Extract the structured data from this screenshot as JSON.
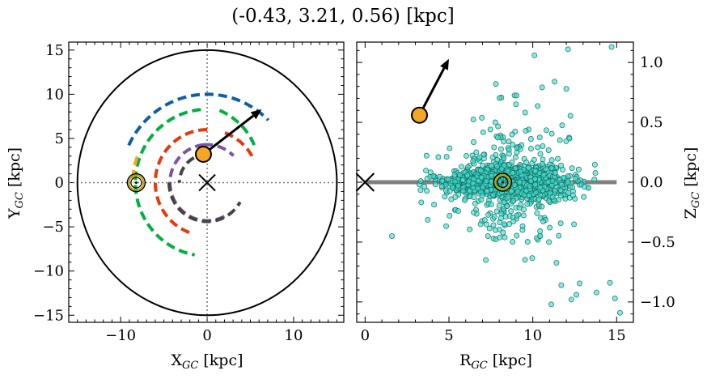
{
  "title": "(-0.43, 3.21, 0.56) [kpc]",
  "chart_data": [
    {
      "type": "line",
      "panel": "left",
      "xlabel": "X_GC [kpc]",
      "ylabel": "Y_GC [kpc]",
      "xlim": [
        -16,
        15.8
      ],
      "ylim": [
        -15.8,
        15.9
      ],
      "xticks": [
        -10,
        0,
        10
      ],
      "yticks": [
        -15,
        -10,
        -5,
        0,
        5,
        10,
        15
      ],
      "boundary_circle_radius_kpc": 15,
      "reference_lines": {
        "x": 0,
        "y": 0,
        "style": "dotted"
      },
      "galactic_center_marker": {
        "x": 0,
        "y": 0,
        "symbol": "x"
      },
      "sun_marker": {
        "x": -8.2,
        "y": 0,
        "symbol": "sun"
      },
      "target_point": {
        "x": -0.43,
        "y": 3.21,
        "color": "#f5a623"
      },
      "velocity_arrow": {
        "from": [
          -0.43,
          3.21
        ],
        "to": [
          6.3,
          8.3
        ]
      },
      "spiral_arms": [
        {
          "color": "#0f5fa6",
          "r_kpc": 10.0,
          "theta_deg": [
            155,
            45
          ]
        },
        {
          "color": "#00b140",
          "r_kpc": 8.3,
          "theta_deg": [
            80,
            35
          ],
          "r_end_kpc": 6.8,
          "theta_end_deg": 35
        },
        {
          "color": "#00b140",
          "r_kpc": 8.3,
          "theta_deg": [
            95,
            260
          ]
        },
        {
          "color": "#e8380d",
          "r_kpc": 6.0,
          "theta_deg": [
            70,
            25
          ]
        },
        {
          "color": "#e8380d",
          "r_kpc": 6.0,
          "theta_deg": [
            90,
            250
          ]
        },
        {
          "color": "#7b55a3",
          "r_kpc": 4.3,
          "theta_deg": [
            95,
            45
          ]
        },
        {
          "color": "#7b55a3",
          "r_kpc": 4.3,
          "theta_deg": [
            95,
            300
          ]
        },
        {
          "color": "#444444",
          "r_kpc": 3.2,
          "theta_deg": [
            90,
            180
          ]
        },
        {
          "color": "#444444",
          "r_kpc": 4.4,
          "theta_deg": [
            180,
            330
          ]
        },
        {
          "color": "#f5a623",
          "r_kpc": 8.6,
          "theta_deg": [
            160,
            180
          ]
        }
      ]
    },
    {
      "type": "scatter",
      "panel": "right",
      "xlabel": "R_GC [kpc]",
      "ylabel": "Z_GC [kpc]",
      "xlim": [
        -0.5,
        16
      ],
      "ylim": [
        -1.17,
        1.17
      ],
      "xticks": [
        0,
        5,
        10,
        15
      ],
      "yticks": [
        -1.0,
        -0.5,
        0.0,
        0.5,
        1.0
      ],
      "point_color": "#40e0d0",
      "disk_line": {
        "x": [
          0,
          15
        ],
        "y": 0,
        "color": "#808080"
      },
      "galactic_center_marker": {
        "x": 0,
        "y": 0,
        "symbol": "x"
      },
      "sun_marker": {
        "x": 8.2,
        "y": 0,
        "symbol": "sun"
      },
      "target_point": {
        "x": 3.24,
        "y": 0.56,
        "color": "#f5a623"
      },
      "velocity_arrow": {
        "from": [
          3.24,
          0.56
        ],
        "to": [
          5.0,
          1.03
        ]
      },
      "cloud": {
        "center_x": 8.5,
        "spread_x": 2.6,
        "core_spread_y": 0.06,
        "wide_spread_y": 0.28,
        "count": 1500
      },
      "outliers": [
        [
          10.1,
          1.06
        ],
        [
          12.1,
          1.11
        ],
        [
          14.7,
          1.13
        ],
        [
          7.8,
          0.82
        ],
        [
          11.3,
          0.84
        ],
        [
          12.0,
          0.78
        ],
        [
          1.6,
          -0.45
        ],
        [
          7.2,
          -0.65
        ],
        [
          11.7,
          -0.86
        ],
        [
          12.6,
          -0.94
        ],
        [
          13.8,
          -0.92
        ],
        [
          14.6,
          -0.84
        ],
        [
          14.9,
          -0.97
        ],
        [
          15.2,
          -1.09
        ],
        [
          11.1,
          -1.02
        ],
        [
          12.3,
          -0.98
        ]
      ]
    }
  ]
}
